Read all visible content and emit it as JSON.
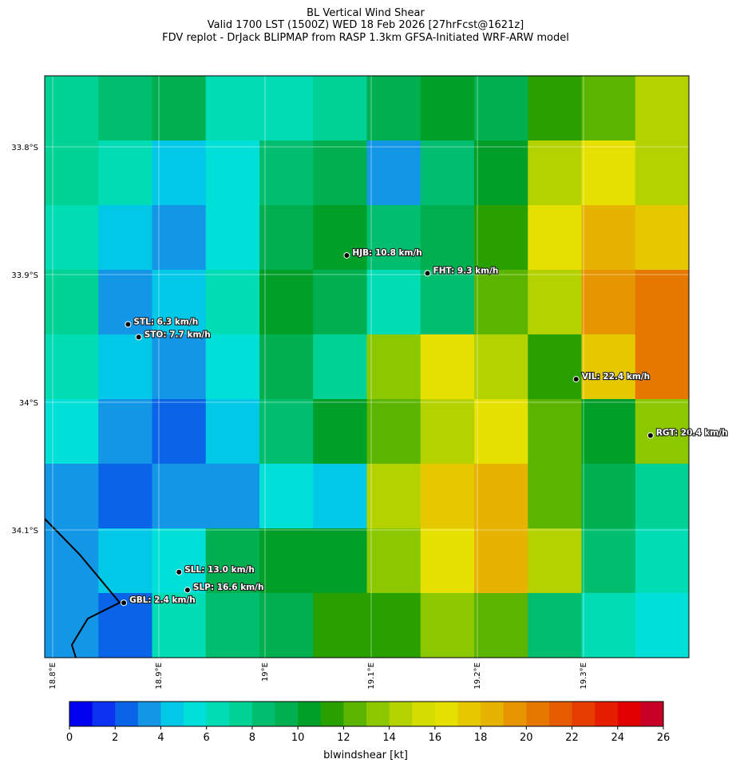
{
  "chart_data": {
    "type": "heatmap",
    "title": [
      "BL Vertical Wind Shear",
      "Valid 1700 LST (1500Z) WED 18 Feb 2026 [27hrFcst@1621z]",
      "FDV replot - DrJack BLIPMAP from RASP 1.3km GFSA-Initiated WRF-ARW model"
    ],
    "xlim": [
      18.7925,
      19.3992
    ],
    "ylim": [
      -34.2,
      -33.7444
    ],
    "xticks": [
      {
        "value": 18.8,
        "label": "18.8°E"
      },
      {
        "value": 18.9,
        "label": "18.9°E"
      },
      {
        "value": 19.0,
        "label": "19°E"
      },
      {
        "value": 19.1,
        "label": "19.1°E"
      },
      {
        "value": 19.2,
        "label": "19.2°E"
      },
      {
        "value": 19.3,
        "label": "19.3°E"
      }
    ],
    "yticks": [
      {
        "value": -33.8,
        "label": "33.8°S"
      },
      {
        "value": -33.9,
        "label": "33.9°S"
      },
      {
        "value": -34.0,
        "label": "34°S"
      },
      {
        "value": -34.1,
        "label": "34.1°S"
      }
    ],
    "grid_values": [
      [
        7,
        8,
        9,
        6,
        6,
        7,
        9,
        10,
        9,
        11,
        12,
        14
      ],
      [
        7,
        6,
        4,
        5,
        8,
        9,
        3,
        8,
        10,
        14,
        16,
        15
      ],
      [
        6,
        4,
        3,
        5,
        9,
        10,
        8,
        9,
        11,
        16,
        18,
        17
      ],
      [
        7,
        3,
        4,
        6,
        10,
        9,
        6,
        8,
        12,
        15,
        19,
        20
      ],
      [
        6,
        4,
        3,
        5,
        9,
        7,
        13,
        16,
        14,
        11,
        17,
        20
      ],
      [
        5,
        3,
        2,
        4,
        8,
        10,
        12,
        15,
        16,
        12,
        10,
        13
      ],
      [
        3,
        2,
        3,
        3,
        5,
        4,
        14,
        17,
        18,
        12,
        9,
        7
      ],
      [
        3,
        4,
        5,
        9,
        10,
        10,
        13,
        16,
        18,
        14,
        8,
        6
      ],
      [
        3,
        2,
        6,
        8,
        9,
        11,
        11,
        13,
        12,
        8,
        6,
        5
      ]
    ],
    "stations": [
      {
        "label": "HJB: 10.8 km/h",
        "lon": 19.077,
        "lat": -33.885
      },
      {
        "label": "FHT: 9.3 km/h",
        "lon": 19.153,
        "lat": -33.899
      },
      {
        "label": "STL: 6.3 km/h",
        "lon": 18.871,
        "lat": -33.939
      },
      {
        "label": "STO: 7.7 km/h",
        "lon": 18.881,
        "lat": -33.949
      },
      {
        "label": "VIL: 22.4 km/h",
        "lon": 19.293,
        "lat": -33.982
      },
      {
        "label": "RGT: 20.4 km/h",
        "lon": 19.363,
        "lat": -34.026
      },
      {
        "label": "SLL: 13.0 km/h",
        "lon": 18.919,
        "lat": -34.133
      },
      {
        "label": "SLP: 16.6 km/h",
        "lon": 18.927,
        "lat": -34.147
      },
      {
        "label": "GBL: 2.4 km/h",
        "lon": 18.867,
        "lat": -34.157
      }
    ],
    "colorbar": {
      "label": "blwindshear [kt]",
      "lim": [
        0,
        26
      ],
      "ticks": [
        0,
        2,
        4,
        6,
        8,
        10,
        12,
        14,
        16,
        18,
        20,
        22,
        24,
        26
      ],
      "colors": [
        "#0000f0",
        "#0a32f0",
        "#0a64e8",
        "#1496e6",
        "#00c8e6",
        "#00e0d8",
        "#00dcb4",
        "#00d296",
        "#00be6e",
        "#00b050",
        "#00a028",
        "#28a000",
        "#5ab400",
        "#8cc800",
        "#b4d200",
        "#d2dc00",
        "#e6e000",
        "#e6c800",
        "#e6b400",
        "#e69600",
        "#e67800",
        "#e65a00",
        "#e63c00",
        "#e61e00",
        "#e00000",
        "#c80028"
      ]
    }
  }
}
